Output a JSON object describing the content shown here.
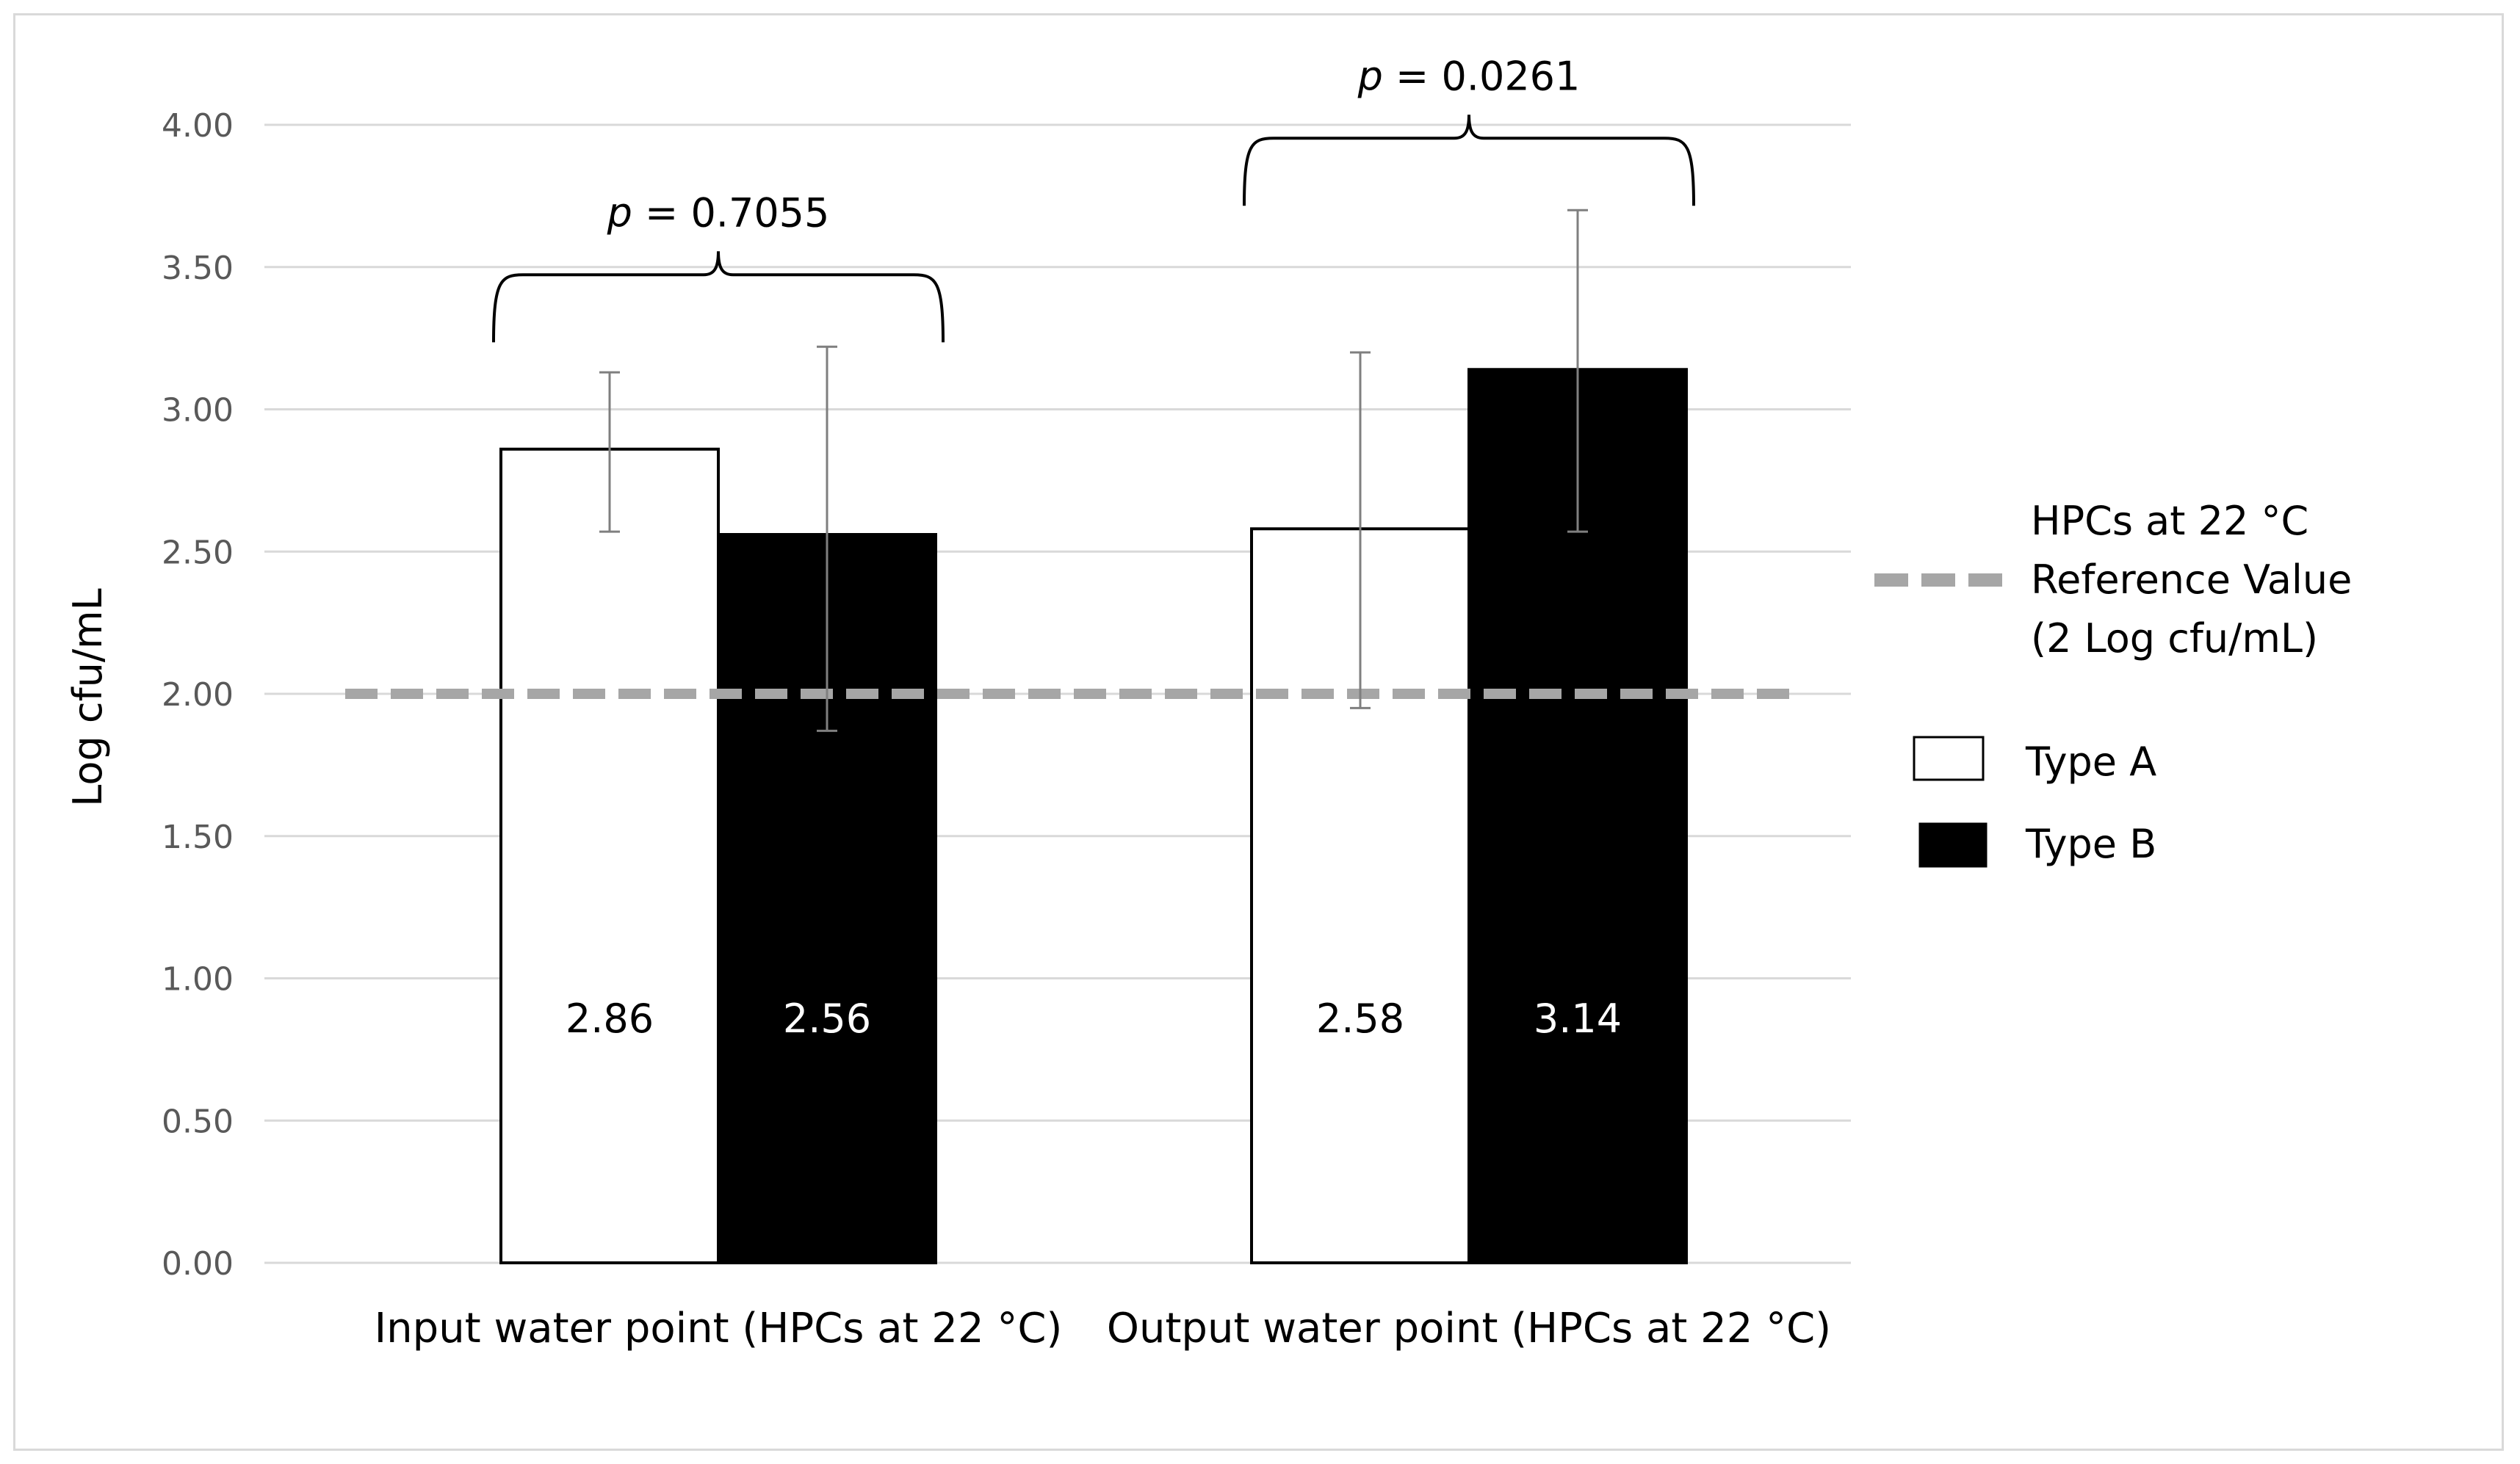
{
  "chart_data": {
    "type": "bar",
    "ylabel": "Log cfu/mL",
    "ylim": [
      0,
      4
    ],
    "ytick_step": 0.5,
    "ytick_labels": [
      "0.00",
      "0.50",
      "1.00",
      "1.50",
      "2.00",
      "2.50",
      "3.00",
      "3.50",
      "4.00"
    ],
    "categories": [
      "Input water point (HPCs at 22 °C)",
      "Output water point (HPCs at 22 °C)"
    ],
    "grid": true,
    "legend_position": "right",
    "series": [
      {
        "name": "Type A",
        "color": "#ffffff",
        "label_color": "#000000",
        "values": [
          2.86,
          2.58
        ],
        "value_labels": [
          "2.86",
          "2.58"
        ],
        "error_low": [
          2.57,
          1.95
        ],
        "error_high": [
          3.13,
          3.2
        ]
      },
      {
        "name": "Type B",
        "color": "#000000",
        "label_color": "#ffffff",
        "values": [
          2.56,
          3.14
        ],
        "value_labels": [
          "2.56",
          "3.14"
        ],
        "error_low": [
          1.87,
          2.57
        ],
        "error_high": [
          3.22,
          3.7
        ]
      }
    ],
    "reference_line": {
      "value": 2.0,
      "color": "#a6a6a6",
      "label_lines": [
        "HPCs at 22 °C",
        "Reference Value",
        "(2 Log cfu/mL)"
      ]
    },
    "annotations": [
      {
        "p_label": "p",
        "p_value": " = 0.7055",
        "category_index": 0
      },
      {
        "p_label": "p",
        "p_value": " = 0.0261",
        "category_index": 1
      }
    ]
  }
}
